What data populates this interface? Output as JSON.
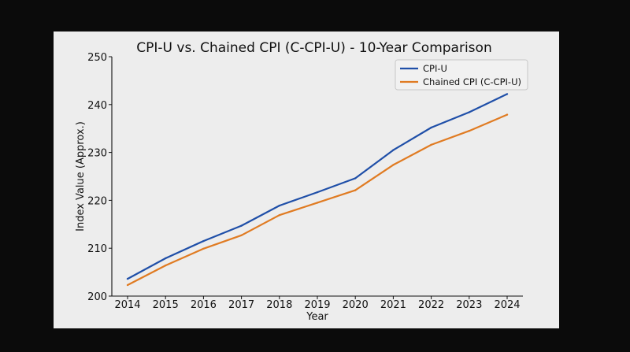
{
  "chart_data": {
    "type": "line",
    "title": "CPI-U vs. Chained CPI (C-CPI-U) - 10-Year Comparison",
    "xlabel": "Year",
    "ylabel": "Index Value (Approx.)",
    "x": [
      2014,
      2015,
      2016,
      2017,
      2018,
      2019,
      2020,
      2021,
      2022,
      2023,
      2024
    ],
    "ylim": [
      200,
      250
    ],
    "yticks": [
      200,
      210,
      220,
      230,
      240,
      250
    ],
    "grid": false,
    "legend_position": "top-right",
    "series": [
      {
        "name": "CPI-U",
        "color": "#1f4fa8",
        "values": [
          203.6,
          207.9,
          211.5,
          214.7,
          218.9,
          221.7,
          224.6,
          230.5,
          235.2,
          238.4,
          242.2
        ]
      },
      {
        "name": "Chained CPI (C-CPI-U)",
        "color": "#e07b22",
        "values": [
          202.3,
          206.4,
          209.9,
          212.7,
          216.9,
          219.5,
          222.1,
          227.4,
          231.6,
          234.5,
          237.9
        ]
      }
    ]
  }
}
